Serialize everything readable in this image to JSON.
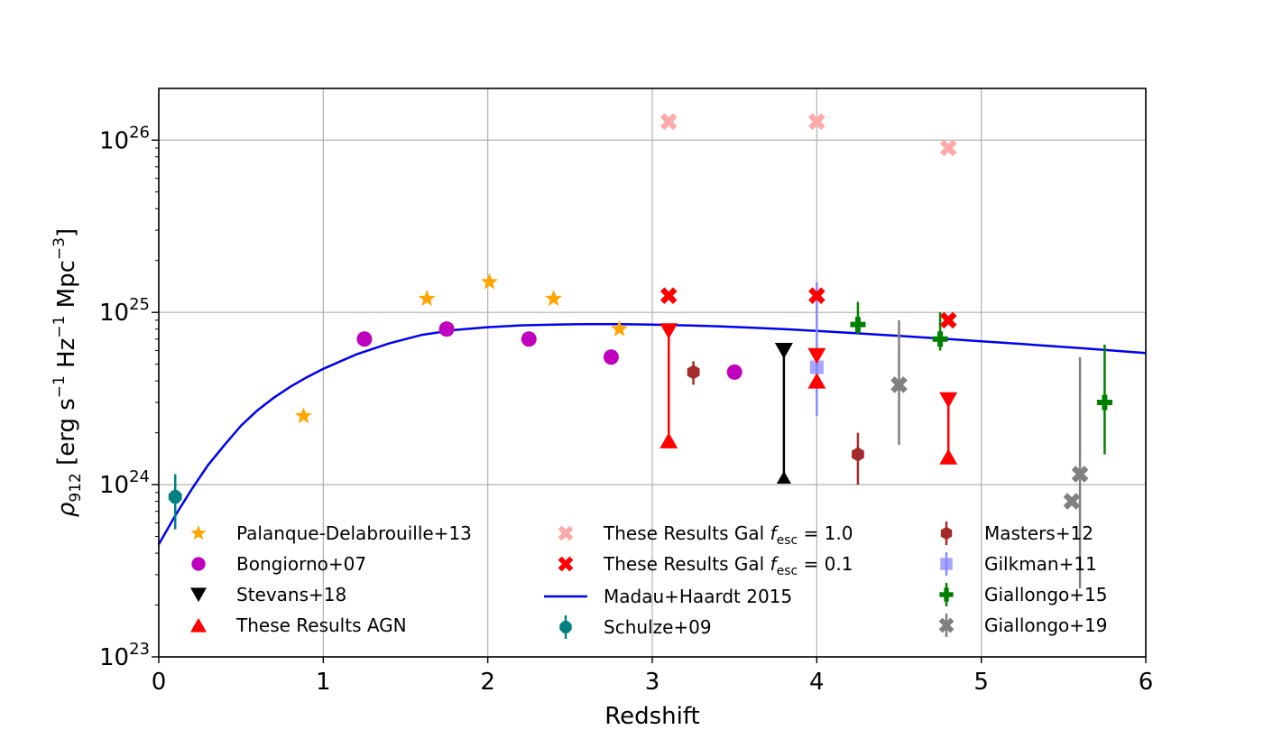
{
  "chart_data": {
    "type": "scatter",
    "title": "",
    "xlabel": "Redshift",
    "ylabel": "ρ912 [erg s−1 Hz−1 Mpc−3]",
    "ylabel_parts": {
      "rho": "ρ",
      "sub": "912",
      "open": " [erg s",
      "sup1": "−1",
      "mid": " Hz",
      "sup2": "−1",
      "mpc": " Mpc",
      "sup3": "−3",
      "close": "]"
    },
    "xlim": [
      0,
      6
    ],
    "ylim_log10": [
      23,
      26.3
    ],
    "y_scale": "log",
    "grid": true,
    "x_ticks": [
      "0",
      "1",
      "2",
      "3",
      "4",
      "5",
      "6"
    ],
    "y_ticks": [
      {
        "base": "10",
        "exp": "23"
      },
      {
        "base": "10",
        "exp": "24"
      },
      {
        "base": "10",
        "exp": "25"
      },
      {
        "base": "10",
        "exp": "26"
      }
    ],
    "legend_position": "lower-center",
    "series": [
      {
        "name": "Palanque-Delabrouille+13",
        "color": "#FFA500",
        "marker": "star",
        "points": [
          {
            "x": 0.88,
            "y": 2.5e+24
          },
          {
            "x": 1.63,
            "y": 1.2e+25
          },
          {
            "x": 2.01,
            "y": 1.5e+25
          },
          {
            "x": 2.4,
            "y": 1.2e+25
          },
          {
            "x": 2.8,
            "y": 8e+24
          }
        ]
      },
      {
        "name": "Bongiorno+07",
        "color": "#BF00BF",
        "marker": "circle",
        "points": [
          {
            "x": 1.25,
            "y": 7e+24
          },
          {
            "x": 1.75,
            "y": 8e+24
          },
          {
            "x": 2.25,
            "y": 7e+24
          },
          {
            "x": 2.75,
            "y": 5.5e+24
          },
          {
            "x": 3.5,
            "y": 4.5e+24
          }
        ]
      },
      {
        "name": "Stevans+18",
        "color": "#000000",
        "marker": "triangle-down",
        "points": [
          {
            "x": 3.8,
            "y": 6e+24
          }
        ]
      },
      {
        "name": "These Results AGN",
        "color": "#FF0000",
        "marker": "triangle-up",
        "points": [
          {
            "x": 3.1,
            "y": 1.8e+24
          },
          {
            "x": 4.0,
            "y": 4e+24
          },
          {
            "x": 4.8,
            "y": 1.45e+24
          }
        ]
      },
      {
        "name": "These Results Gal f_esc = 1.0",
        "label_main": "These Results Gal ",
        "label_f": "f",
        "label_sub": "esc",
        "label_val": " = 1.0",
        "color": "#FFAAAA",
        "marker": "x-filled",
        "points": [
          {
            "x": 3.1,
            "y": 1.28e+26
          },
          {
            "x": 4.0,
            "y": 1.28e+26
          },
          {
            "x": 4.8,
            "y": 9e+25
          }
        ]
      },
      {
        "name": "These Results Gal f_esc = 0.1",
        "label_main": "These Results Gal ",
        "label_f": "f",
        "label_sub": "esc",
        "label_val": " = 0.1",
        "color": "#FF0000",
        "marker": "x-filled",
        "points": [
          {
            "x": 3.1,
            "y": 1.25e+25
          },
          {
            "x": 4.0,
            "y": 1.25e+25
          },
          {
            "x": 4.8,
            "y": 9e+24
          }
        ]
      },
      {
        "name": "Madau+Haardt 2015",
        "color": "#0000EE",
        "marker": "line"
      },
      {
        "name": "Schulze+09",
        "color": "#008080",
        "marker": "octagon",
        "points": [
          {
            "x": 0.1,
            "y": 8.5e+23,
            "ylo": 5.5e+23,
            "yhi": 1.15e+24
          }
        ]
      },
      {
        "name": "Masters+12",
        "color": "#A52A2A",
        "marker": "hexagon",
        "points": [
          {
            "x": 3.25,
            "y": 4.5e+24,
            "ylo": 3.8e+24,
            "yhi": 5.2e+24
          },
          {
            "x": 4.25,
            "y": 1.5e+24,
            "ylo": 1e+24,
            "yhi": 2e+24
          }
        ]
      },
      {
        "name": "Gilkman+11",
        "color": "#8888FF",
        "marker": "square",
        "points": [
          {
            "x": 4.0,
            "y": 4.8e+24,
            "ylo": 2.5e+24,
            "yhi": 1.5e+25
          }
        ]
      },
      {
        "name": "Giallongo+15",
        "color": "#008000",
        "marker": "plus",
        "points": [
          {
            "x": 4.25,
            "y": 8.5e+24,
            "ylo": 7.5e+24,
            "yhi": 1.15e+25
          },
          {
            "x": 4.75,
            "y": 7e+24,
            "ylo": 6e+24,
            "yhi": 1e+25
          },
          {
            "x": 5.75,
            "y": 3e+24,
            "ylo": 1.5e+24,
            "yhi": 6.5e+24
          }
        ]
      },
      {
        "name": "Giallongo+19",
        "color": "#808080",
        "marker": "x-filled",
        "points": [
          {
            "x": 4.5,
            "y": 3.8e+24,
            "ylo": 1.7e+24,
            "yhi": 9e+24
          },
          {
            "x": 5.55,
            "y": 8e+23,
            "ylo": 8e+23,
            "yhi": 8e+23
          },
          {
            "x": 5.6,
            "y": 1.15e+24,
            "ylo": 2.5e+23,
            "yhi": 5.5e+24
          }
        ]
      }
    ],
    "agn_ranges": [
      {
        "x": 3.1,
        "upper": 7.8e+24,
        "lower": 1.8e+24
      },
      {
        "x": 4.0,
        "upper": 5.6e+24,
        "lower": 4e+24
      },
      {
        "x": 4.8,
        "upper": 3.1e+24,
        "lower": 1.45e+24
      }
    ],
    "stevans_range": {
      "x": 3.8,
      "upper": 6e+24,
      "lower": 1.1e+24
    },
    "madau_haardt_curve": {
      "x": [
        0.0,
        0.1,
        0.2,
        0.3,
        0.4,
        0.5,
        0.6,
        0.7,
        0.8,
        0.9,
        1.0,
        1.2,
        1.4,
        1.6,
        1.8,
        2.0,
        2.2,
        2.4,
        2.6,
        2.8,
        3.0,
        3.2,
        3.4,
        3.6,
        3.8,
        4.0,
        4.2,
        4.4,
        4.6,
        4.8,
        5.0,
        5.2,
        5.4,
        5.6,
        5.8,
        6.0
      ],
      "y": [
        4.5e+23,
        6.6e+23,
        9.4e+23,
        1.3e+24,
        1.7e+24,
        2.2e+24,
        2.7e+24,
        3.2e+24,
        3.7e+24,
        4.2e+24,
        4.7e+24,
        5.7e+24,
        6.6e+24,
        7.4e+24,
        7.9e+24,
        8.2e+24,
        8.4e+24,
        8.5e+24,
        8.55e+24,
        8.55e+24,
        8.5e+24,
        8.4e+24,
        8.3e+24,
        8.15e+24,
        8e+24,
        7.8e+24,
        7.6e+24,
        7.4e+24,
        7.2e+24,
        7e+24,
        6.8e+24,
        6.6e+24,
        6.4e+24,
        6.2e+24,
        6e+24,
        5.8e+24
      ]
    }
  }
}
